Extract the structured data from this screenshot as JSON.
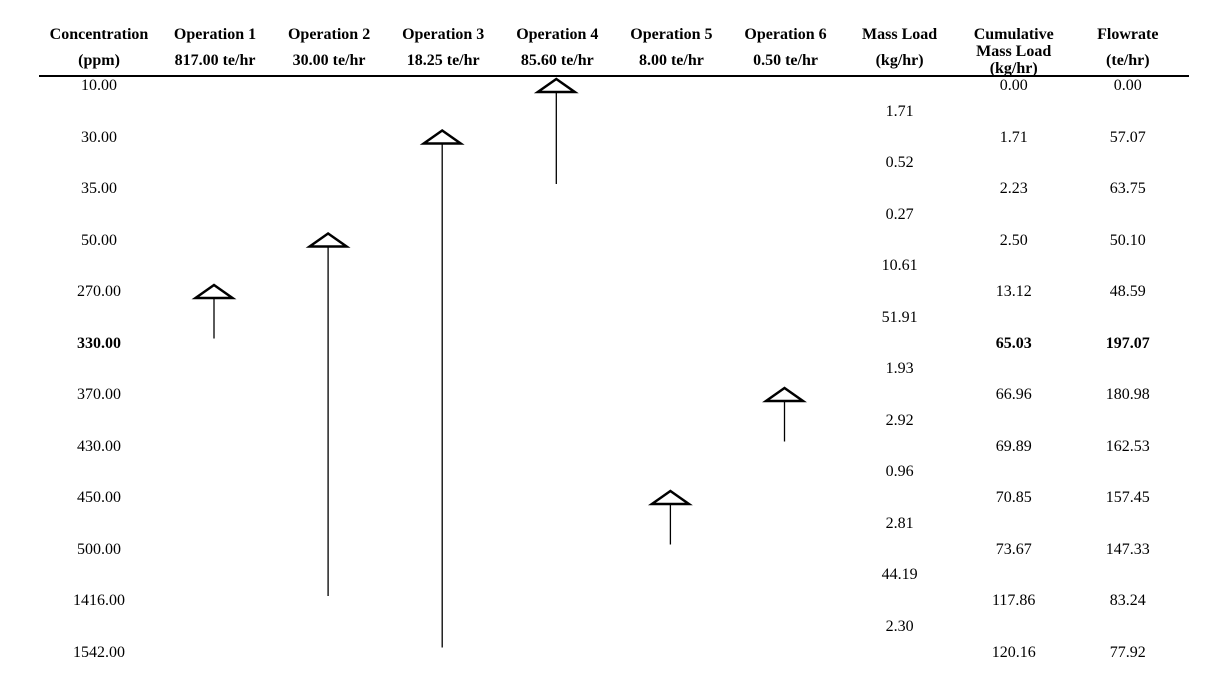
{
  "colors": {
    "background": "#ffffff",
    "text": "#000000",
    "line": "#000000"
  },
  "chart_data": {
    "type": "table",
    "description_visible_layout": "concentration interval table with vertical operation arrows",
    "columns": [
      {
        "id": "concentration",
        "lines": [
          "Concentration",
          "(ppm)"
        ]
      },
      {
        "id": "operation-1",
        "lines": [
          "Operation 1",
          "817.00 te/hr"
        ]
      },
      {
        "id": "operation-2",
        "lines": [
          "Operation 2",
          "30.00 te/hr"
        ]
      },
      {
        "id": "operation-3",
        "lines": [
          "Operation 3",
          "18.25 te/hr"
        ]
      },
      {
        "id": "operation-4",
        "lines": [
          "Operation 4",
          "85.60 te/hr"
        ]
      },
      {
        "id": "operation-5",
        "lines": [
          "Operation 5",
          "8.00 te/hr"
        ]
      },
      {
        "id": "operation-6",
        "lines": [
          "Operation 6",
          "0.50 te/hr"
        ]
      },
      {
        "id": "mass-load",
        "lines": [
          "Mass Load",
          "(kg/hr)"
        ]
      },
      {
        "id": "cumulative-mass-load",
        "lines": [
          "Cumulative",
          "Mass Load",
          "(kg/hr)"
        ]
      },
      {
        "id": "flowrate",
        "lines": [
          "Flowrate",
          "(te/hr)"
        ]
      }
    ],
    "rows": [
      {
        "concentration": "10.00",
        "cumulative_mass_load": "0.00",
        "flowrate": "0.00",
        "bold": false
      },
      {
        "concentration": "30.00",
        "cumulative_mass_load": "1.71",
        "flowrate": "57.07",
        "bold": false
      },
      {
        "concentration": "35.00",
        "cumulative_mass_load": "2.23",
        "flowrate": "63.75",
        "bold": false
      },
      {
        "concentration": "50.00",
        "cumulative_mass_load": "2.50",
        "flowrate": "50.10",
        "bold": false
      },
      {
        "concentration": "270.00",
        "cumulative_mass_load": "13.12",
        "flowrate": "48.59",
        "bold": false
      },
      {
        "concentration": "330.00",
        "cumulative_mass_load": "65.03",
        "flowrate": "197.07",
        "bold": true
      },
      {
        "concentration": "370.00",
        "cumulative_mass_load": "66.96",
        "flowrate": "180.98",
        "bold": false
      },
      {
        "concentration": "430.00",
        "cumulative_mass_load": "69.89",
        "flowrate": "162.53",
        "bold": false
      },
      {
        "concentration": "450.00",
        "cumulative_mass_load": "70.85",
        "flowrate": "157.45",
        "bold": false
      },
      {
        "concentration": "500.00",
        "cumulative_mass_load": "73.67",
        "flowrate": "147.33",
        "bold": false
      },
      {
        "concentration": "1416.00",
        "cumulative_mass_load": "117.86",
        "flowrate": "83.24",
        "bold": false
      },
      {
        "concentration": "1542.00",
        "cumulative_mass_load": "120.16",
        "flowrate": "77.92",
        "bold": false
      }
    ],
    "mass_load_intervals": [
      "1.71",
      "0.52",
      "0.27",
      "10.61",
      "51.91",
      "1.93",
      "2.92",
      "0.96",
      "2.81",
      "44.19",
      "2.30"
    ],
    "operations": [
      {
        "name": "Operation 1",
        "flowrate_label": "817.00 te/hr",
        "tail_ppm": "330.00",
        "head_ppm": "270.00"
      },
      {
        "name": "Operation 2",
        "flowrate_label": "30.00 te/hr",
        "tail_ppm": "1416.00",
        "head_ppm": "50.00"
      },
      {
        "name": "Operation 3",
        "flowrate_label": "18.25 te/hr",
        "tail_ppm": "1542.00",
        "head_ppm": "30.00"
      },
      {
        "name": "Operation 4",
        "flowrate_label": "85.60 te/hr",
        "tail_ppm": "35.00",
        "head_ppm": "10.00"
      },
      {
        "name": "Operation 5",
        "flowrate_label": "8.00 te/hr",
        "tail_ppm": "500.00",
        "head_ppm": "450.00"
      },
      {
        "name": "Operation 6",
        "flowrate_label": "0.50 te/hr",
        "tail_ppm": "430.00",
        "head_ppm": "370.00"
      }
    ]
  }
}
